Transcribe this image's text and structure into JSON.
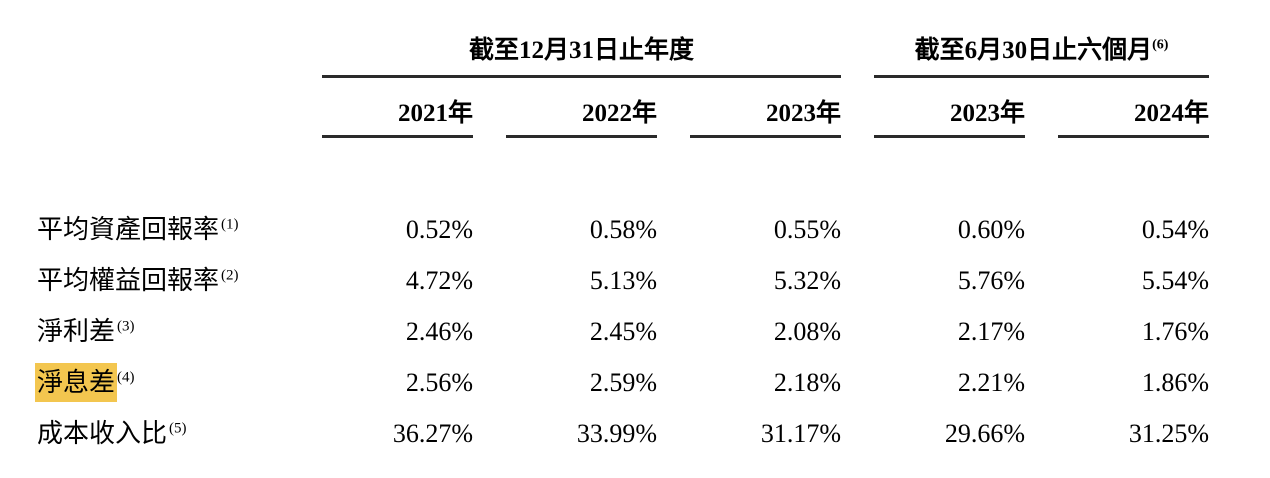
{
  "header": {
    "group1": {
      "label": "截至12月31日止年度"
    },
    "group2": {
      "label": "截至6月30日止六個月",
      "sup": "(6)"
    },
    "years": [
      "2021年",
      "2022年",
      "2023年",
      "2023年",
      "2024年"
    ]
  },
  "rows": [
    {
      "label": "平均資產回報率",
      "sup": "(1)",
      "highlight": false,
      "values": [
        "0.52%",
        "0.58%",
        "0.55%",
        "0.60%",
        "0.54%"
      ]
    },
    {
      "label": "平均權益回報率",
      "sup": "(2)",
      "highlight": false,
      "values": [
        "4.72%",
        "5.13%",
        "5.32%",
        "5.76%",
        "5.54%"
      ]
    },
    {
      "label": "淨利差",
      "sup": "(3)",
      "highlight": false,
      "values": [
        "2.46%",
        "2.45%",
        "2.08%",
        "2.17%",
        "1.76%"
      ]
    },
    {
      "label": "淨息差",
      "sup": "(4)",
      "highlight": true,
      "values": [
        "2.56%",
        "2.59%",
        "2.18%",
        "2.21%",
        "1.86%"
      ]
    },
    {
      "label": "成本收入比",
      "sup": "(5)",
      "highlight": false,
      "values": [
        "36.27%",
        "33.99%",
        "31.17%",
        "29.66%",
        "31.25%"
      ]
    }
  ],
  "colors": {
    "highlight": "#F3C64F",
    "rule": "#2A2A2A",
    "text": "#000000",
    "background": "#FFFFFF"
  }
}
